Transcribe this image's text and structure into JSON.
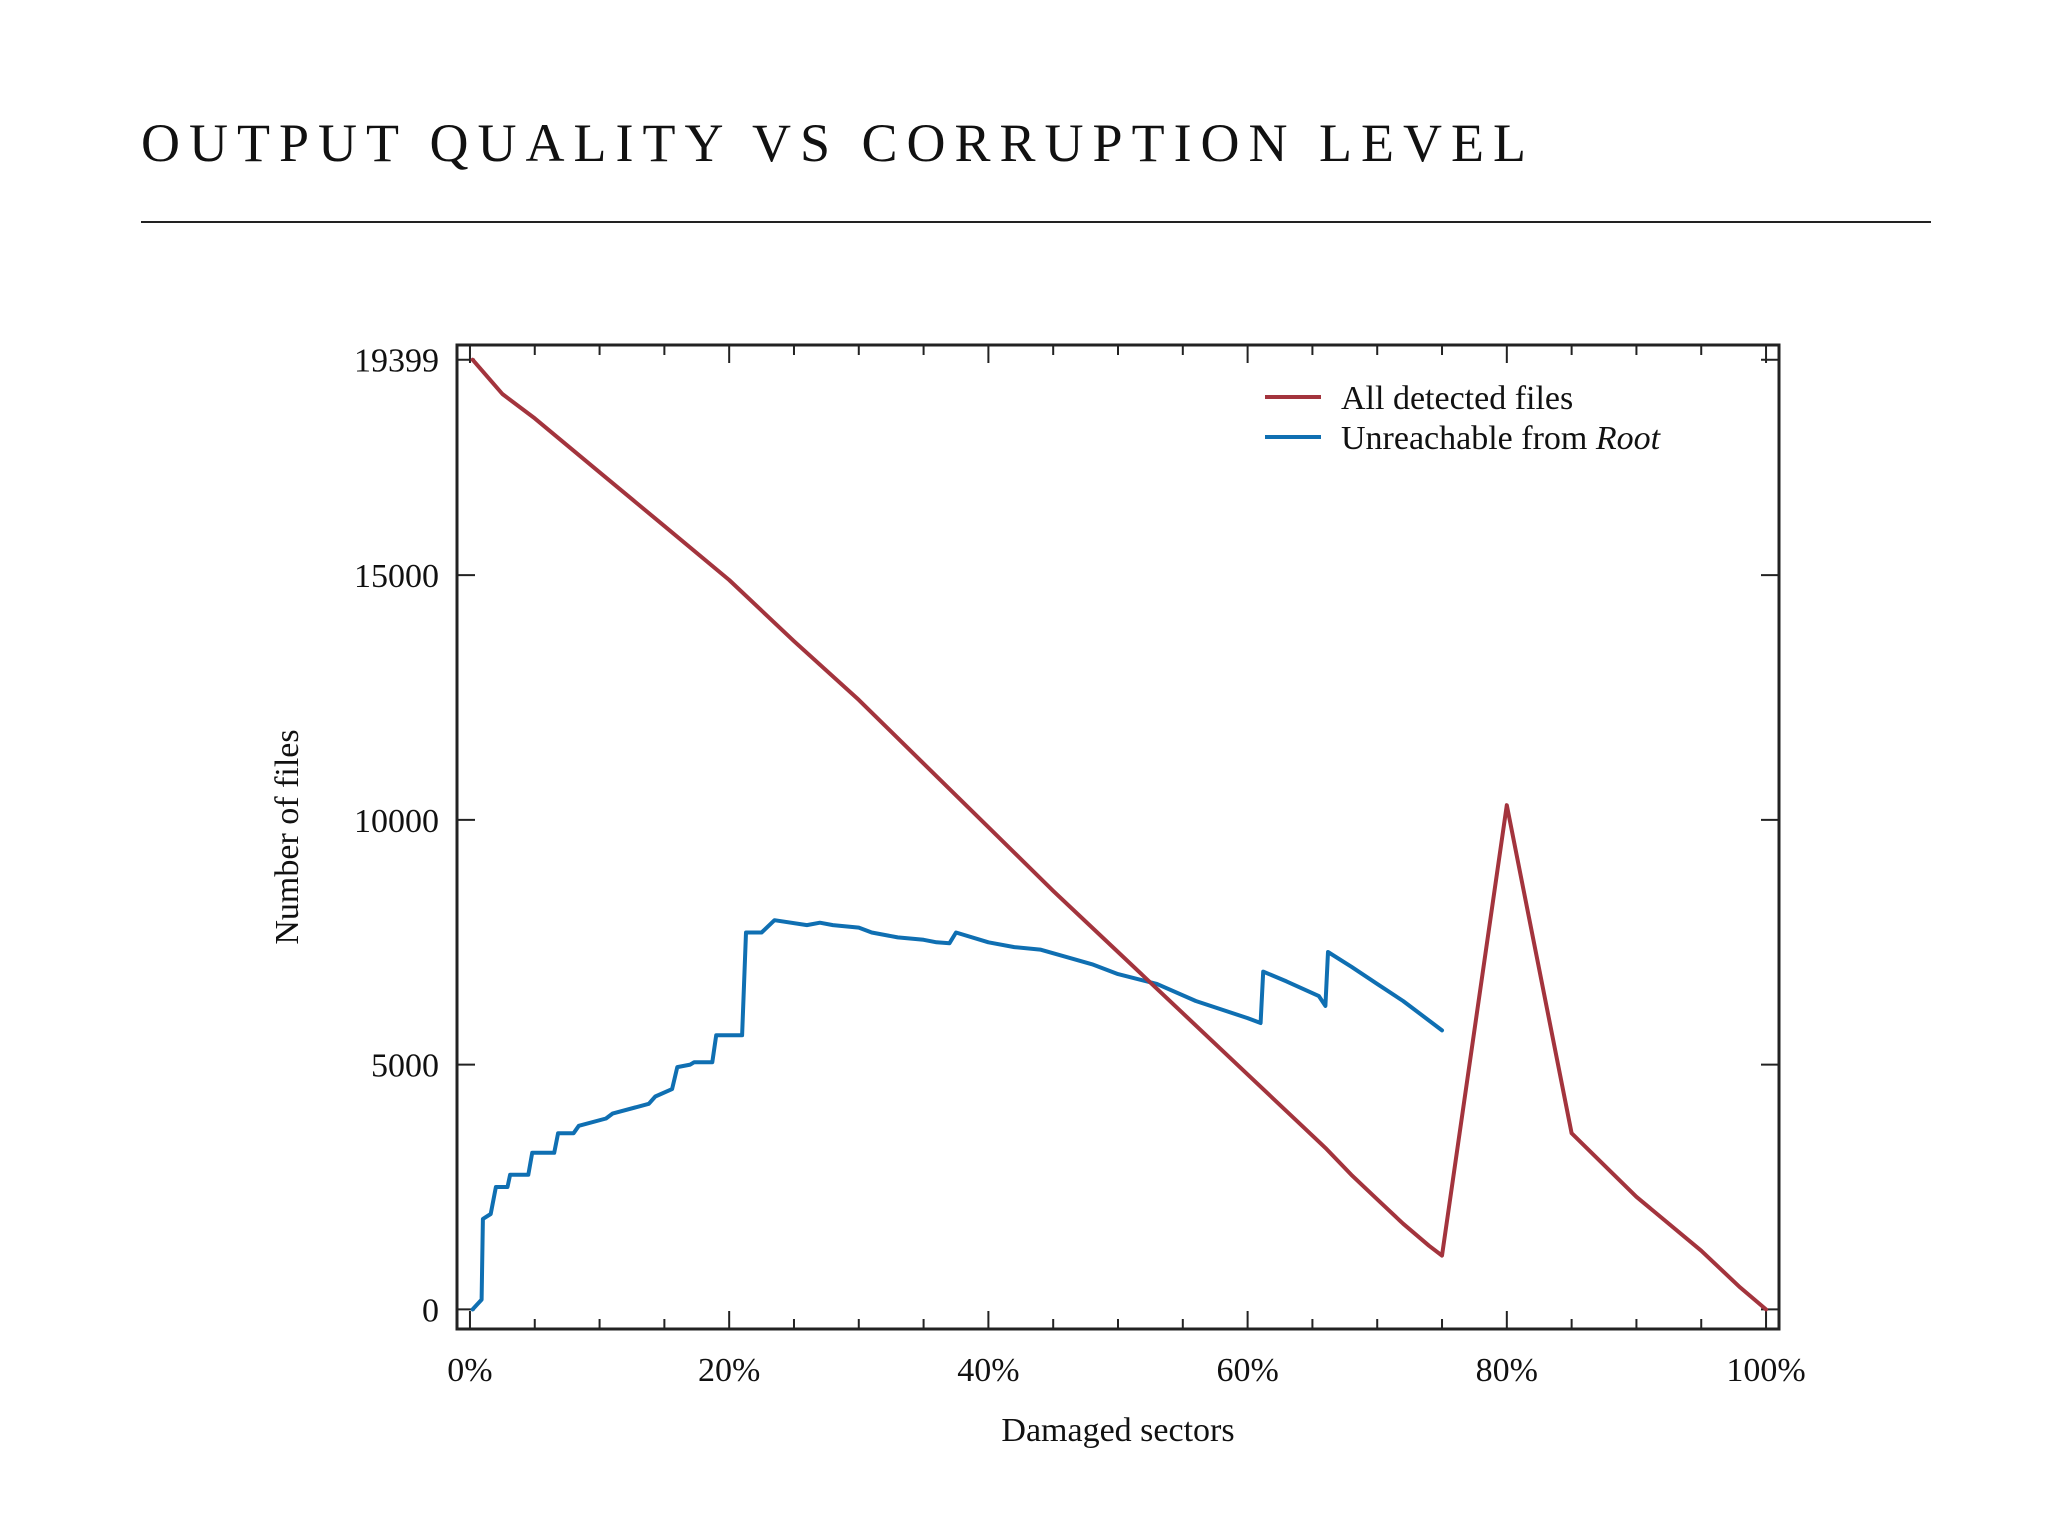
{
  "page": {
    "title": "OUTPUT QUALITY VS CORRUPTION LEVEL"
  },
  "chart_data": {
    "type": "line",
    "title": "",
    "xlabel": "Damaged sectors",
    "ylabel": "Number of files",
    "xlim": [
      -1,
      101
    ],
    "ylim": [
      -400,
      19700
    ],
    "x_ticks": [
      0,
      20,
      40,
      60,
      80,
      100
    ],
    "x_tick_labels": [
      "0%",
      "20%",
      "40%",
      "60%",
      "80%",
      "100%"
    ],
    "y_ticks": [
      0,
      5000,
      10000,
      15000,
      19399
    ],
    "y_tick_labels": [
      "0",
      "5000",
      "10000",
      "15000",
      "19399"
    ],
    "grid": false,
    "legend_position": "top-right",
    "colors": {
      "all_detected": "#a3343d",
      "unreachable": "#0f6fb2"
    },
    "legend": [
      {
        "prefix": "All detected files",
        "italic": ""
      },
      {
        "prefix": "Unreachable from ",
        "italic": "Root"
      }
    ],
    "series": [
      {
        "name": "All detected files",
        "x": [
          0.2,
          2.5,
          5,
          10,
          15,
          20,
          25,
          30,
          35,
          40,
          45,
          50,
          55,
          60,
          62,
          64,
          66,
          68,
          70,
          72,
          74,
          75,
          80,
          85,
          90,
          95,
          98,
          100
        ],
        "y": [
          19399,
          18700,
          18200,
          17100,
          16000,
          14900,
          13650,
          12450,
          11150,
          9850,
          8550,
          7300,
          6050,
          4800,
          4300,
          3800,
          3300,
          2750,
          2250,
          1750,
          1300,
          1100,
          10300,
          3600,
          2300,
          1200,
          450,
          0
        ]
      },
      {
        "name": "Unreachable from Root",
        "x": [
          0.2,
          0.9,
          1.0,
          1.6,
          2.0,
          2.9,
          3.1,
          4.5,
          4.8,
          6.5,
          6.8,
          8.0,
          8.4,
          10.5,
          11.0,
          13.8,
          14.3,
          15.6,
          16.0,
          17.0,
          17.3,
          18.7,
          19.0,
          21.0,
          21.3,
          22.5,
          23.5,
          26.0,
          27.0,
          28.0,
          30.0,
          31.0,
          33.0,
          35.0,
          36.0,
          37.0,
          37.5,
          40.0,
          42.0,
          44.0,
          46.0,
          48.0,
          50.0,
          53.0,
          56.0,
          60.0,
          61.0,
          61.2,
          63.0,
          65.5,
          66.0,
          66.2,
          68.0,
          70.0,
          72.0,
          74.0,
          75.0
        ],
        "y": [
          0,
          200,
          1850,
          1950,
          2500,
          2500,
          2750,
          2750,
          3200,
          3200,
          3600,
          3600,
          3750,
          3900,
          4000,
          4200,
          4350,
          4500,
          4950,
          5000,
          5050,
          5050,
          5600,
          5600,
          7700,
          7700,
          7950,
          7850,
          7900,
          7850,
          7800,
          7700,
          7600,
          7550,
          7500,
          7480,
          7700,
          7500,
          7400,
          7350,
          7200,
          7050,
          6850,
          6650,
          6300,
          5950,
          5850,
          6900,
          6700,
          6400,
          6200,
          7300,
          7000,
          6650,
          6300,
          5900,
          5700
        ]
      }
    ]
  }
}
